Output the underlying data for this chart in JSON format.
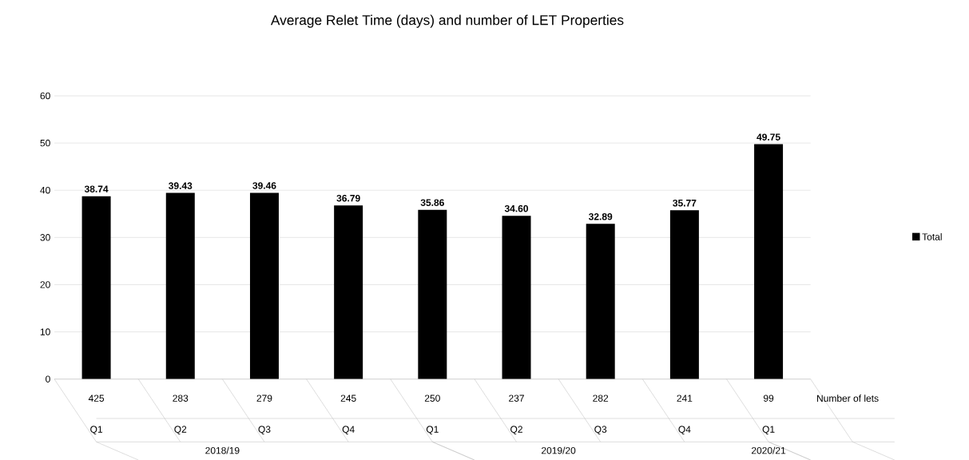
{
  "chart_data": {
    "type": "bar",
    "title": "Average Relet Time (days) and number of LET Properties",
    "categories": [
      "Q1",
      "Q2",
      "Q3",
      "Q4",
      "Q1",
      "Q2",
      "Q3",
      "Q4",
      "Q1"
    ],
    "series": [
      {
        "name": "Total",
        "color": "#000000",
        "values": [
          38.74,
          39.43,
          39.46,
          36.79,
          35.86,
          34.6,
          32.89,
          35.77,
          49.75
        ],
        "value_labels": [
          "38.74",
          "39.43",
          "39.46",
          "36.79",
          "35.86",
          "34.60",
          "32.89",
          "35.77",
          "49.75"
        ]
      }
    ],
    "ylim": [
      0,
      60
    ],
    "yticks": [
      0,
      10,
      20,
      30,
      40,
      50,
      60
    ],
    "grid": "y",
    "legend": "right",
    "annotations": [
      "425",
      "283",
      "279",
      "245",
      "250",
      "237",
      "282",
      "241",
      "99",
      "Number of lets",
      "2018/19",
      "2019/20",
      "2020/21"
    ]
  }
}
